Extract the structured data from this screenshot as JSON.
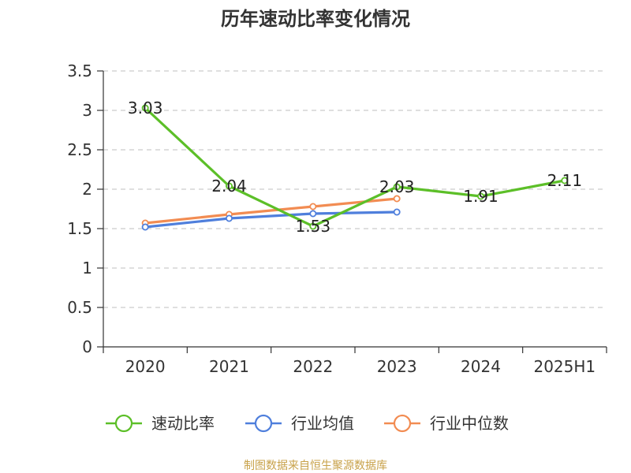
{
  "chart_data": {
    "type": "line",
    "title": "历年速动比率变化情况",
    "categories": [
      "2020",
      "2021",
      "2022",
      "2023",
      "2024",
      "2025H1"
    ],
    "y_ticks": [
      "0",
      "0.5",
      "1",
      "1.5",
      "2",
      "2.5",
      "3",
      "3.5"
    ],
    "ylim": [
      0,
      3.5
    ],
    "grid": "horizontal dashed",
    "legend_position": "bottom",
    "series": [
      {
        "name": "速动比率",
        "color": "#5cbf28",
        "values": [
          3.03,
          2.04,
          1.53,
          2.03,
          1.91,
          2.11
        ],
        "labels": [
          "3.03",
          "2.04",
          "1.53",
          "2.03",
          "1.91",
          "2.11"
        ],
        "show_labels": true
      },
      {
        "name": "行业均值",
        "color": "#4f7fdc",
        "values": [
          1.52,
          1.63,
          1.69,
          1.71,
          null,
          null
        ],
        "show_labels": false
      },
      {
        "name": "行业中位数",
        "color": "#f28c52",
        "values": [
          1.57,
          1.68,
          1.78,
          1.88,
          null,
          null
        ],
        "show_labels": false
      }
    ]
  },
  "footer": {
    "source": "制图数据来自恒生聚源数据库"
  }
}
